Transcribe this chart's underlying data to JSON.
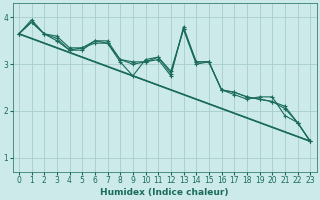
{
  "xlabel": "Humidex (Indice chaleur)",
  "background_color": "#cceaea",
  "grid_color": "#a8cccc",
  "line_color": "#1a6b5a",
  "xlim": [
    -0.5,
    23.5
  ],
  "ylim": [
    0.7,
    4.3
  ],
  "yticks": [
    1,
    2,
    3,
    4
  ],
  "xticks": [
    0,
    1,
    2,
    3,
    4,
    5,
    6,
    7,
    8,
    9,
    10,
    11,
    12,
    13,
    14,
    15,
    16,
    17,
    18,
    19,
    20,
    21,
    22,
    23
  ],
  "lines": [
    {
      "x": [
        0,
        1,
        2,
        3,
        4,
        5,
        6,
        7,
        8,
        9,
        10,
        11,
        12,
        13,
        14,
        15,
        16,
        17,
        18,
        19,
        20,
        21,
        22,
        23
      ],
      "y": [
        3.65,
        3.95,
        3.65,
        3.6,
        3.35,
        3.35,
        3.5,
        3.5,
        3.1,
        3.05,
        3.05,
        3.15,
        2.85,
        3.75,
        3.05,
        3.05,
        2.45,
        2.35,
        2.25,
        2.3,
        2.3,
        1.9,
        1.75,
        1.35
      ],
      "marker": "+",
      "lw": 0.8
    },
    {
      "x": [
        0,
        1,
        2,
        3,
        4,
        5,
        6,
        7,
        8,
        9,
        10,
        11,
        12,
        13,
        14,
        15,
        16,
        17,
        18,
        19,
        20,
        21,
        22,
        23
      ],
      "y": [
        3.65,
        3.9,
        3.65,
        3.55,
        3.3,
        3.3,
        3.5,
        3.45,
        3.05,
        2.75,
        3.1,
        3.15,
        2.8,
        3.75,
        3.0,
        3.05,
        2.45,
        2.4,
        2.3,
        2.25,
        2.2,
        2.1,
        1.75,
        1.35
      ],
      "marker": "+",
      "lw": 0.8
    },
    {
      "x": [
        0,
        1,
        2,
        3,
        4,
        5,
        6,
        7,
        8,
        9,
        10,
        11,
        12,
        13,
        14,
        15,
        16,
        17,
        18,
        19,
        20,
        21,
        22,
        23
      ],
      "y": [
        3.65,
        3.9,
        3.65,
        3.5,
        3.3,
        3.35,
        3.45,
        3.45,
        3.1,
        3.0,
        3.05,
        3.1,
        2.75,
        3.8,
        3.05,
        3.05,
        2.45,
        2.4,
        2.3,
        2.25,
        2.2,
        2.05,
        1.75,
        1.35
      ],
      "marker": "+",
      "lw": 0.8
    },
    {
      "x": [
        0,
        23
      ],
      "y": [
        3.65,
        1.35
      ],
      "marker": null,
      "lw": 1.2
    },
    {
      "x": [
        0,
        23
      ],
      "y": [
        3.65,
        1.35
      ],
      "marker": null,
      "lw": 0.8
    }
  ]
}
